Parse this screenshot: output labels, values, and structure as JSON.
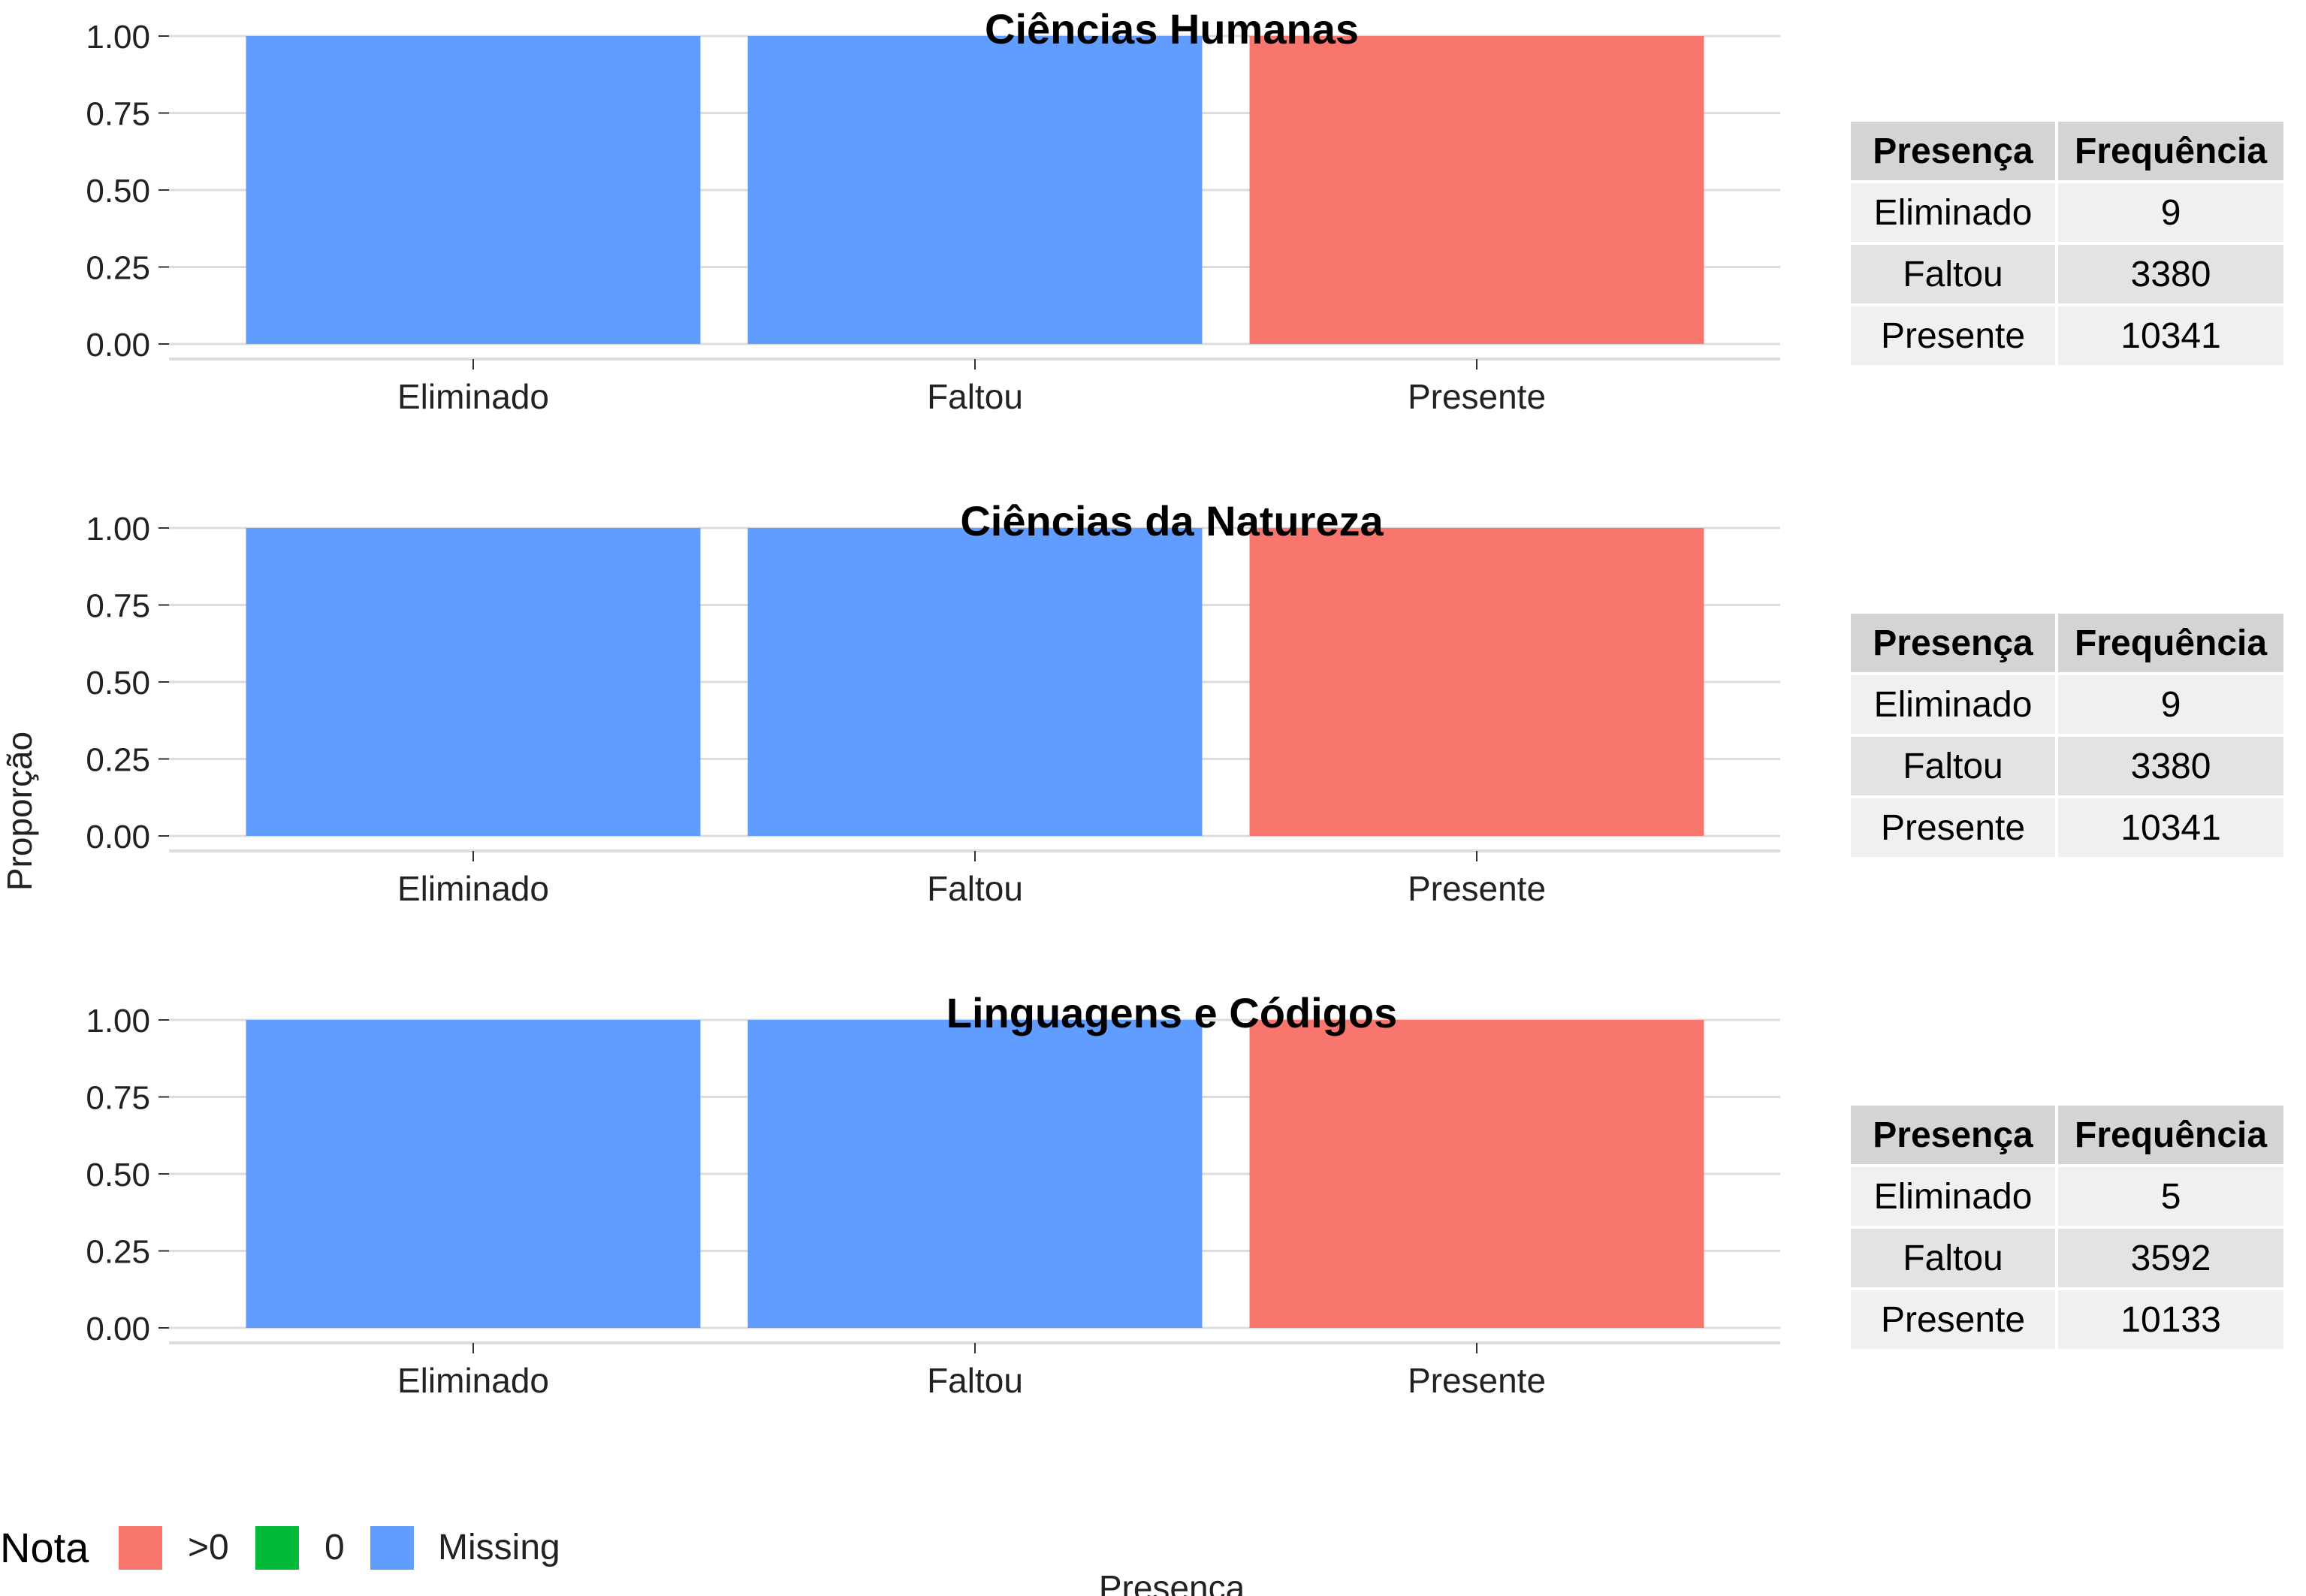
{
  "chart_data": {
    "type": "bar",
    "ylabel": "Proporção",
    "xlabel": "Presença",
    "ylim": [
      0,
      1
    ],
    "yticks": [
      "0.00",
      "0.25",
      "0.50",
      "0.75",
      "1.00"
    ],
    "legend": {
      "title": "Nota",
      "position": "bottom-left",
      "entries": [
        {
          "label": ">0",
          "color": "#f8766d"
        },
        {
          "label": "0",
          "color": "#00ba38"
        },
        {
          "label": "Missing",
          "color": "#619cff"
        }
      ]
    },
    "panels": [
      {
        "title": "Ciências Humanas",
        "categories": [
          "Eliminado",
          "Faltou",
          "Presente"
        ],
        "series": [
          {
            "name": ">0",
            "values": [
              0,
              0,
              1.0
            ]
          },
          {
            "name": "0",
            "values": [
              0,
              0,
              0
            ]
          },
          {
            "name": "Missing",
            "values": [
              1.0,
              1.0,
              0
            ]
          }
        ],
        "table": {
          "headers": [
            "Presença",
            "Frequência"
          ],
          "rows": [
            [
              "Eliminado",
              "9"
            ],
            [
              "Faltou",
              "3380"
            ],
            [
              "Presente",
              "10341"
            ]
          ]
        }
      },
      {
        "title": "Ciências da Natureza",
        "categories": [
          "Eliminado",
          "Faltou",
          "Presente"
        ],
        "series": [
          {
            "name": ">0",
            "values": [
              0,
              0,
              1.0
            ]
          },
          {
            "name": "0",
            "values": [
              0,
              0,
              0
            ]
          },
          {
            "name": "Missing",
            "values": [
              1.0,
              1.0,
              0
            ]
          }
        ],
        "table": {
          "headers": [
            "Presença",
            "Frequência"
          ],
          "rows": [
            [
              "Eliminado",
              "9"
            ],
            [
              "Faltou",
              "3380"
            ],
            [
              "Presente",
              "10341"
            ]
          ]
        }
      },
      {
        "title": "Linguagens e Códigos",
        "categories": [
          "Eliminado",
          "Faltou",
          "Presente"
        ],
        "series": [
          {
            "name": ">0",
            "values": [
              0,
              0,
              1.0
            ]
          },
          {
            "name": "0",
            "values": [
              0,
              0,
              0
            ]
          },
          {
            "name": "Missing",
            "values": [
              1.0,
              1.0,
              0
            ]
          }
        ],
        "table": {
          "headers": [
            "Presença",
            "Frequência"
          ],
          "rows": [
            [
              "Eliminado",
              "5"
            ],
            [
              "Faltou",
              "3592"
            ],
            [
              "Presente",
              "10133"
            ]
          ]
        }
      }
    ]
  }
}
